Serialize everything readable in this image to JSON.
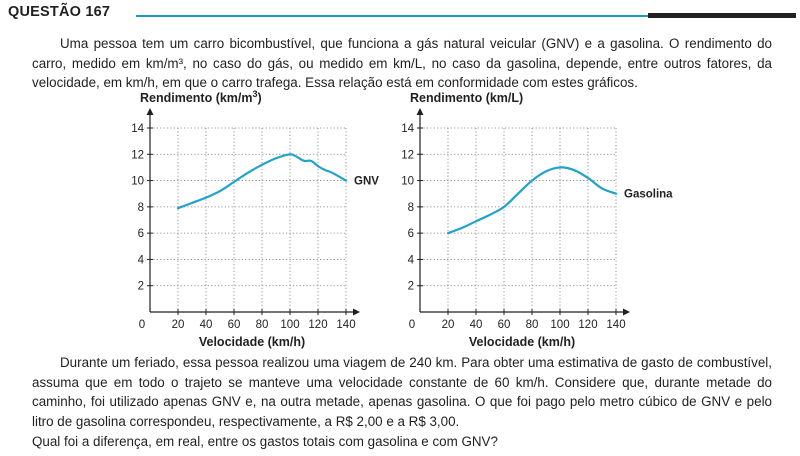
{
  "header": {
    "title": "QUESTÃO 167"
  },
  "paragraphs": {
    "intro": "Uma pessoa tem um carro bicombustível, que funciona a gás natural veicular (GNV) e a gasolina. O rendimento do carro, medido em km/m³, no caso do gás, ou medido em km/L, no caso da gasolina, depende, entre outros fatores, da velocidade, em km/h, em que o carro trafega. Essa relação está em conformidade com estes gráficos.",
    "scenario": "Durante um feriado, essa pessoa realizou uma viagem de 240 km. Para obter uma estimativa de gasto de combustível, assuma que em todo o trajeto se manteve uma velocidade constante de 60 km/h. Considere que, durante metade do caminho, foi utilizado apenas GNV e, na outra metade, apenas gasolina. O que foi pago pelo metro cúbico de GNV e pelo litro de gasolina correspondeu, respectivamente, a R$ 2,00 e a R$ 3,00.",
    "question": "Qual foi a diferença, em real, entre os gastos totais com gasolina e com GNV?"
  },
  "colors": {
    "curve": "#1fa3cc",
    "rule": "#1a9bc5",
    "text": "#231f20"
  },
  "chart_data": [
    {
      "type": "line",
      "ylabel": "Rendimento (km/m³)",
      "xlabel": "Velocidade (km/h)",
      "series_label": "GNV",
      "xlim": [
        0,
        140
      ],
      "ylim": [
        0,
        14
      ],
      "x_ticks": [
        20,
        40,
        60,
        80,
        100,
        120,
        140
      ],
      "y_ticks": [
        2,
        4,
        6,
        8,
        10,
        12,
        14
      ],
      "origin_label": "0",
      "grid": true,
      "x": [
        20,
        30,
        40,
        50,
        60,
        70,
        80,
        90,
        100,
        105,
        110,
        115,
        120,
        125,
        130,
        140
      ],
      "y": [
        7.9,
        8.3,
        8.7,
        9.2,
        9.9,
        10.6,
        11.2,
        11.7,
        12.0,
        11.8,
        11.5,
        11.5,
        11.1,
        10.8,
        10.6,
        10.0
      ]
    },
    {
      "type": "line",
      "ylabel": "Rendimento (km/L)",
      "xlabel": "Velocidade (km/h)",
      "series_label": "Gasolina",
      "xlim": [
        0,
        140
      ],
      "ylim": [
        0,
        14
      ],
      "x_ticks": [
        20,
        40,
        60,
        80,
        100,
        120,
        140
      ],
      "y_ticks": [
        2,
        4,
        6,
        8,
        10,
        12,
        14
      ],
      "origin_label": "0",
      "grid": true,
      "x": [
        20,
        30,
        40,
        50,
        60,
        70,
        80,
        90,
        100,
        110,
        120,
        130,
        140
      ],
      "y": [
        6.0,
        6.4,
        6.9,
        7.4,
        8.0,
        9.0,
        10.0,
        10.7,
        11.0,
        10.8,
        10.2,
        9.4,
        9.0
      ]
    }
  ]
}
